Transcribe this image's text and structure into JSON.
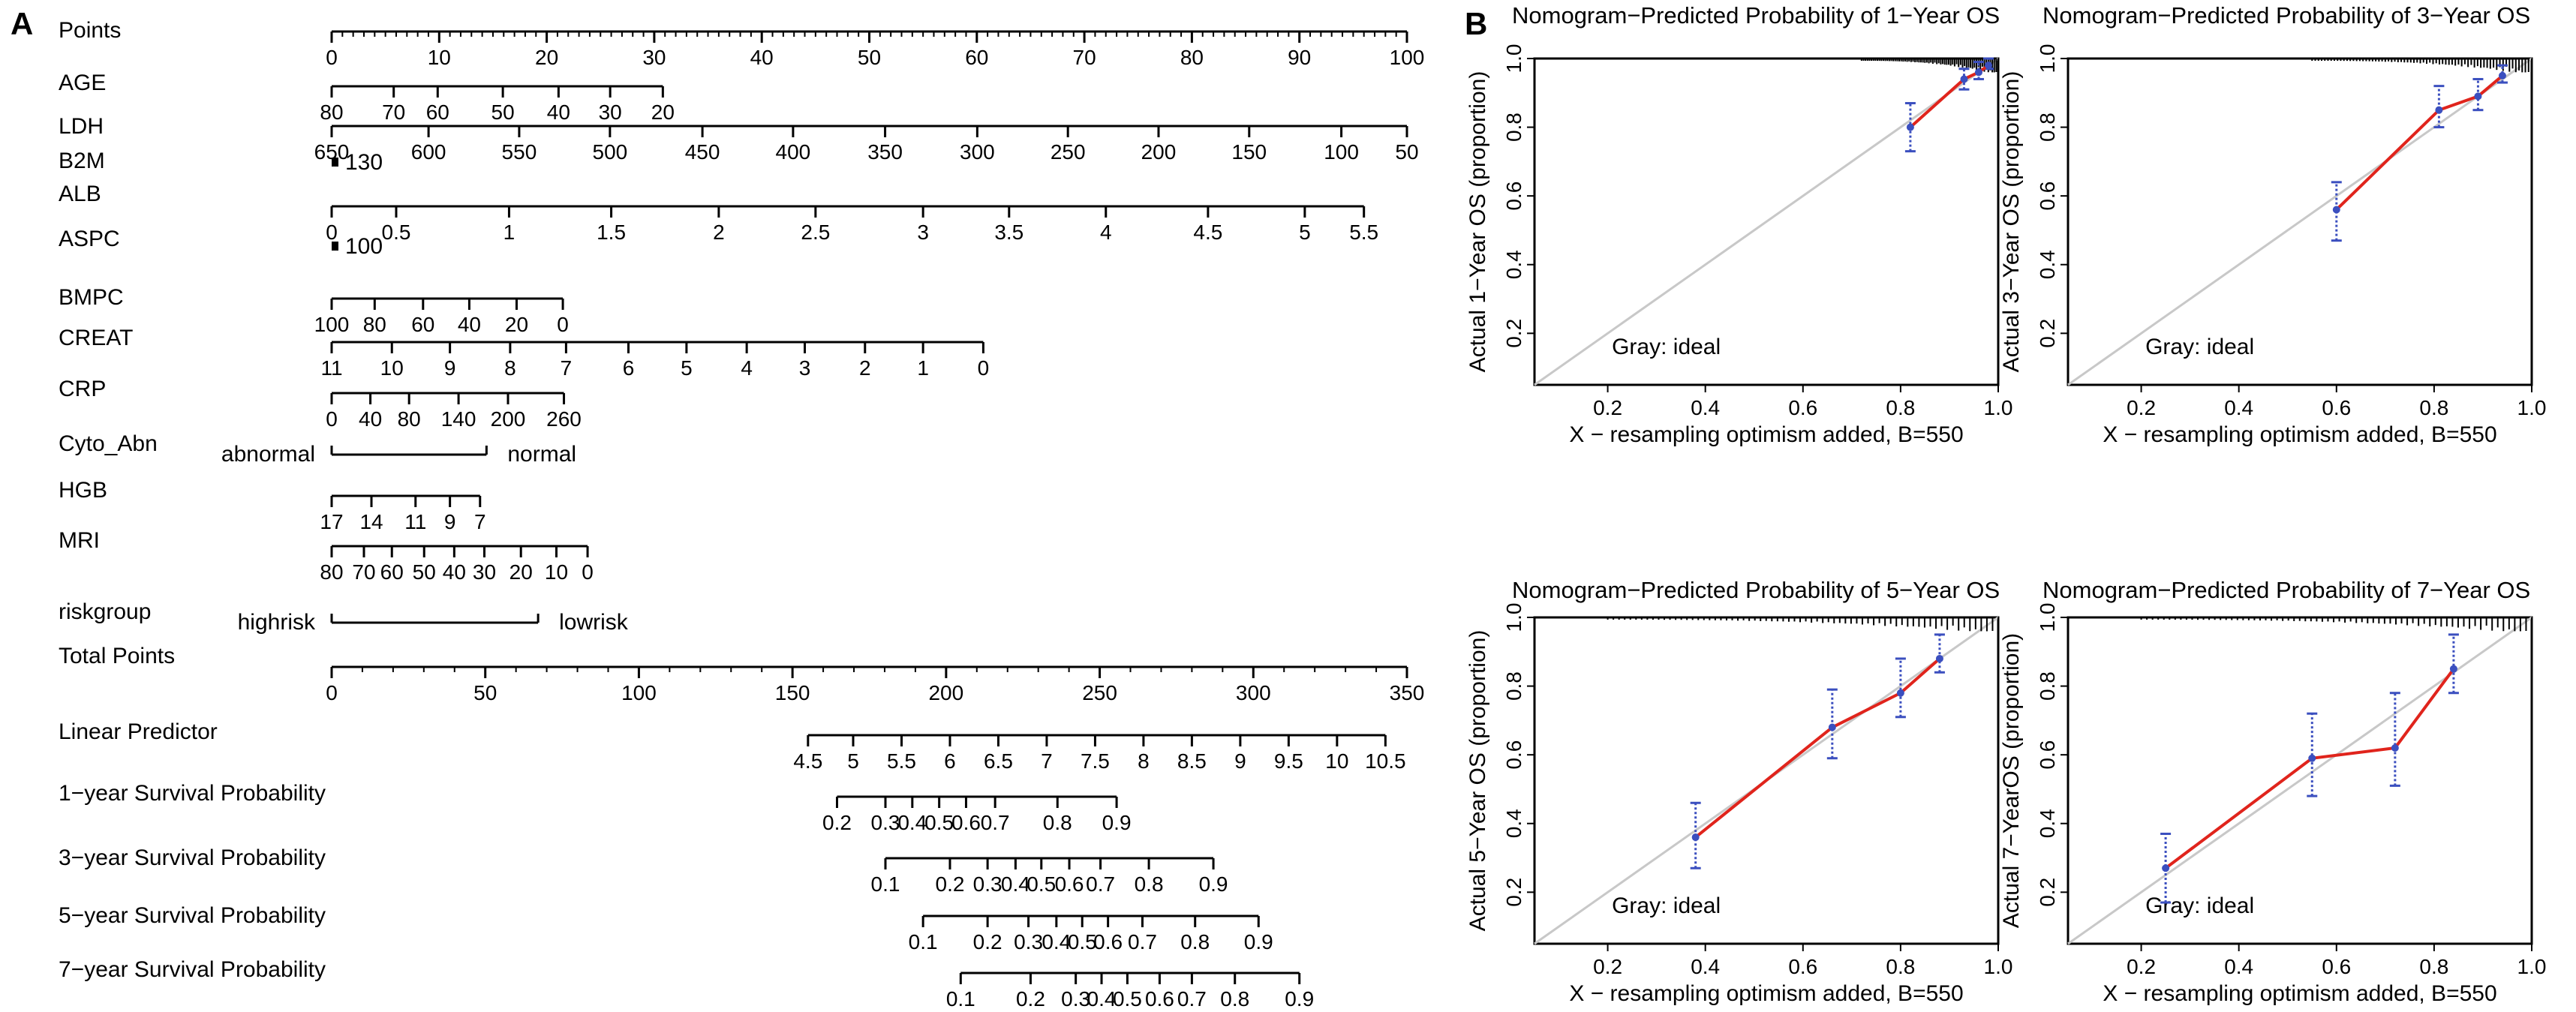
{
  "panel_labels": {
    "a": "A",
    "b": "B"
  },
  "nomogram": {
    "rows": [
      {
        "name": "Points",
        "ticks": [
          [
            "0",
            0
          ],
          [
            "10",
            10
          ],
          [
            "20",
            20
          ],
          [
            "30",
            30
          ],
          [
            "40",
            40
          ],
          [
            "50",
            50
          ],
          [
            "60",
            60
          ],
          [
            "70",
            70
          ],
          [
            "80",
            80
          ],
          [
            "90",
            90
          ],
          [
            "100",
            100
          ]
        ],
        "minor": [
          0,
          100,
          1
        ]
      },
      {
        "name": "AGE",
        "ticks": [
          [
            "80",
            0
          ],
          [
            "70",
            5.77
          ],
          [
            "60",
            9.86
          ],
          [
            "50",
            15.92
          ],
          [
            "40",
            21.1
          ],
          [
            "30",
            25.9
          ],
          [
            "20",
            30.8
          ]
        ]
      },
      {
        "name": "LDH",
        "ticks": [
          [
            "650",
            0
          ],
          [
            "600",
            9.01
          ],
          [
            "550",
            17.44
          ],
          [
            "500",
            25.88
          ],
          [
            "450",
            34.48
          ],
          [
            "400",
            42.91
          ],
          [
            "350",
            51.47
          ],
          [
            "300",
            60.04
          ],
          [
            "250",
            68.47
          ],
          [
            "200",
            76.9
          ],
          [
            "150",
            85.33
          ],
          [
            "100",
            93.9
          ],
          [
            "50",
            100
          ]
        ]
      },
      {
        "name": "B2M",
        "ticks": [
          [
            "130",
            0
          ]
        ],
        "dot": true
      },
      {
        "name": "ALB",
        "ticks": [
          [
            "0",
            0
          ],
          [
            "0.5",
            6.0
          ],
          [
            "1",
            16.5
          ],
          [
            "1.5",
            26.0
          ],
          [
            "2",
            36.0
          ],
          [
            "2.5",
            45.0
          ],
          [
            "3",
            55.0
          ],
          [
            "3.5",
            63.0
          ],
          [
            "4",
            72.0
          ],
          [
            "4.5",
            81.5
          ],
          [
            "5",
            90.5
          ],
          [
            "5.5",
            96.0
          ]
        ]
      },
      {
        "name": "ASPC",
        "ticks": [
          [
            "100",
            0
          ]
        ],
        "dot": true
      },
      {
        "name": "BMPC",
        "ticks": [
          [
            "100",
            0
          ],
          [
            "80",
            4
          ],
          [
            "60",
            8.5
          ],
          [
            "40",
            12.8
          ],
          [
            "20",
            17.2
          ],
          [
            "0",
            21.5
          ]
        ]
      },
      {
        "name": "CREAT",
        "ticks": [
          [
            "11",
            0
          ],
          [
            "10",
            5.6
          ],
          [
            "9",
            11.0
          ],
          [
            "8",
            16.6
          ],
          [
            "7",
            21.8
          ],
          [
            "6",
            27.6
          ],
          [
            "5",
            33.0
          ],
          [
            "4",
            38.6
          ],
          [
            "3",
            44.0
          ],
          [
            "2",
            49.6
          ],
          [
            "1",
            55.0
          ],
          [
            "0",
            60.6
          ]
        ]
      },
      {
        "name": "CRP",
        "ticks": [
          [
            "0",
            0
          ],
          [
            "40",
            3.6
          ],
          [
            "80",
            7.2
          ],
          [
            "140",
            11.8
          ],
          [
            "200",
            16.4
          ],
          [
            "260",
            21.6
          ]
        ]
      },
      {
        "name": "Cyto_Abn",
        "left": "abnormal",
        "right": "normal",
        "seg": [
          0,
          14.4
        ]
      },
      {
        "name": "HGB",
        "ticks": [
          [
            "17",
            0
          ],
          [
            "14",
            3.7
          ],
          [
            "11",
            7.8
          ],
          [
            "9",
            11.0
          ],
          [
            "7",
            13.8
          ]
        ]
      },
      {
        "name": "MRI",
        "ticks": [
          [
            "80",
            0
          ],
          [
            "70",
            3.0
          ],
          [
            "60",
            5.6
          ],
          [
            "50",
            8.6
          ],
          [
            "40",
            11.4
          ],
          [
            "30",
            14.2
          ],
          [
            "20",
            17.6
          ],
          [
            "10",
            20.9
          ],
          [
            "0",
            23.8
          ]
        ]
      },
      {
        "name": "riskgroup",
        "left": "highrisk",
        "right": "lowrisk",
        "seg": [
          0,
          19.2
        ]
      },
      {
        "name": "Total Points",
        "ticks": [
          [
            "0",
            0
          ],
          [
            "50",
            50
          ],
          [
            "100",
            100
          ],
          [
            "150",
            150
          ],
          [
            "200",
            200
          ],
          [
            "250",
            250
          ],
          [
            "300",
            300
          ],
          [
            "350",
            350
          ]
        ],
        "minor": [
          0,
          350,
          10
        ],
        "scale": 350
      },
      {
        "name": "Linear Predictor",
        "ticks": [
          [
            "4.5",
            44.3
          ],
          [
            "5",
            48.5
          ],
          [
            "5.5",
            53.0
          ],
          [
            "6",
            57.5
          ],
          [
            "6.5",
            62.0
          ],
          [
            "7",
            66.5
          ],
          [
            "7.5",
            71.0
          ],
          [
            "8",
            75.5
          ],
          [
            "8.5",
            80.0
          ],
          [
            "9",
            84.5
          ],
          [
            "9.5",
            89.0
          ],
          [
            "10",
            93.5
          ],
          [
            "10.5",
            98.0
          ]
        ]
      },
      {
        "name": "1−year Survival Probability",
        "ticks": [
          [
            "0.2",
            47.0
          ],
          [
            "0.3",
            51.5
          ],
          [
            "0.4",
            54.0
          ],
          [
            "0.5",
            56.5
          ],
          [
            "0.6",
            59.0
          ],
          [
            "0.7",
            61.7
          ],
          [
            "0.8",
            67.5
          ],
          [
            "0.9",
            73.0
          ]
        ]
      },
      {
        "name": "3−year Survival Probability",
        "ticks": [
          [
            "0.1",
            51.5
          ],
          [
            "0.2",
            57.5
          ],
          [
            "0.3",
            61.0
          ],
          [
            "0.4",
            63.6
          ],
          [
            "0.5",
            66.0
          ],
          [
            "0.6",
            68.6
          ],
          [
            "0.7",
            71.5
          ],
          [
            "0.8",
            76.0
          ],
          [
            "0.9",
            82.0
          ]
        ]
      },
      {
        "name": "5−year Survival Probability",
        "ticks": [
          [
            "0.1",
            55.0
          ],
          [
            "0.2",
            61.0
          ],
          [
            "0.3",
            64.8
          ],
          [
            "0.4",
            67.4
          ],
          [
            "0.5",
            69.8
          ],
          [
            "0.6",
            72.2
          ],
          [
            "0.7",
            75.4
          ],
          [
            "0.8",
            80.3
          ],
          [
            "0.9",
            86.2
          ]
        ]
      },
      {
        "name": "7−year Survival Probability",
        "ticks": [
          [
            "0.1",
            58.5
          ],
          [
            "0.2",
            65.0
          ],
          [
            "0.3",
            69.2
          ],
          [
            "0.4",
            71.6
          ],
          [
            "0.5",
            74.0
          ],
          [
            "0.6",
            77.0
          ],
          [
            "0.7",
            80.0
          ],
          [
            "0.8",
            84.0
          ],
          [
            "0.9",
            90.0
          ]
        ]
      }
    ]
  },
  "chart_data": [
    {
      "type": "line",
      "title": "Nomogram−Predicted Probability of 1−Year OS",
      "xlabel": "X − resampling optimism added, B=550",
      "ylabel": "Actual 1−Year OS (proportion)",
      "xlim": [
        0.05,
        1.0
      ],
      "ylim": [
        0.05,
        1.0
      ],
      "xticks": [
        "0.2",
        "0.4",
        "0.6",
        "0.8",
        "1.0"
      ],
      "yticks": [
        "0.2",
        "0.4",
        "0.6",
        "0.8",
        "1.0"
      ],
      "legend": "Gray: ideal",
      "x": [
        0.82,
        0.93,
        0.96,
        0.98
      ],
      "y": [
        0.8,
        0.94,
        0.96,
        0.98
      ],
      "err_low": [
        0.73,
        0.91,
        0.94,
        0.97
      ],
      "err_high": [
        0.87,
        0.97,
        0.99,
        1.0
      ],
      "rug": [
        0.72,
        1.0
      ]
    },
    {
      "type": "line",
      "title": "Nomogram−Predicted Probability of 3−Year OS",
      "xlabel": "X − resampling optimism added, B=550",
      "ylabel": "Actual 3−Year OS (proportion)",
      "xlim": [
        0.05,
        1.0
      ],
      "ylim": [
        0.05,
        1.0
      ],
      "xticks": [
        "0.2",
        "0.4",
        "0.6",
        "0.8",
        "1.0"
      ],
      "yticks": [
        "0.2",
        "0.4",
        "0.6",
        "0.8",
        "1.0"
      ],
      "legend": "Gray: ideal",
      "x": [
        0.6,
        0.81,
        0.89,
        0.94
      ],
      "y": [
        0.56,
        0.85,
        0.89,
        0.95
      ],
      "err_low": [
        0.47,
        0.8,
        0.85,
        0.93
      ],
      "err_high": [
        0.64,
        0.92,
        0.94,
        0.98
      ],
      "rug": [
        0.55,
        1.0
      ]
    },
    {
      "type": "line",
      "title": "Nomogram−Predicted Probability of 5−Year OS",
      "xlabel": "X − resampling optimism added, B=550",
      "ylabel": "Actual 5−Year OS (proportion)",
      "xlim": [
        0.05,
        1.0
      ],
      "ylim": [
        0.05,
        1.0
      ],
      "xticks": [
        "0.2",
        "0.4",
        "0.6",
        "0.8",
        "1.0"
      ],
      "yticks": [
        "0.2",
        "0.4",
        "0.6",
        "0.8",
        "1.0"
      ],
      "legend": "Gray: ideal",
      "x": [
        0.38,
        0.66,
        0.8,
        0.88
      ],
      "y": [
        0.36,
        0.68,
        0.78,
        0.88
      ],
      "err_low": [
        0.27,
        0.59,
        0.71,
        0.84
      ],
      "err_high": [
        0.46,
        0.79,
        0.88,
        0.95
      ],
      "rug": [
        0.2,
        1.0
      ]
    },
    {
      "type": "line",
      "title": "Nomogram−Predicted Probability of 7−Year OS",
      "xlabel": "X − resampling optimism added, B=550",
      "ylabel": "Actual 7−YearOS (proportion)",
      "xlim": [
        0.05,
        1.0
      ],
      "ylim": [
        0.05,
        1.0
      ],
      "xticks": [
        "0.2",
        "0.4",
        "0.6",
        "0.8",
        "1.0"
      ],
      "yticks": [
        "0.2",
        "0.4",
        "0.6",
        "0.8",
        "1.0"
      ],
      "legend": "Gray: ideal",
      "x": [
        0.25,
        0.55,
        0.72,
        0.84
      ],
      "y": [
        0.27,
        0.59,
        0.62,
        0.85
      ],
      "err_low": [
        0.17,
        0.48,
        0.51,
        0.78
      ],
      "err_high": [
        0.37,
        0.72,
        0.78,
        0.95
      ],
      "rug": [
        0.2,
        1.0
      ]
    }
  ]
}
